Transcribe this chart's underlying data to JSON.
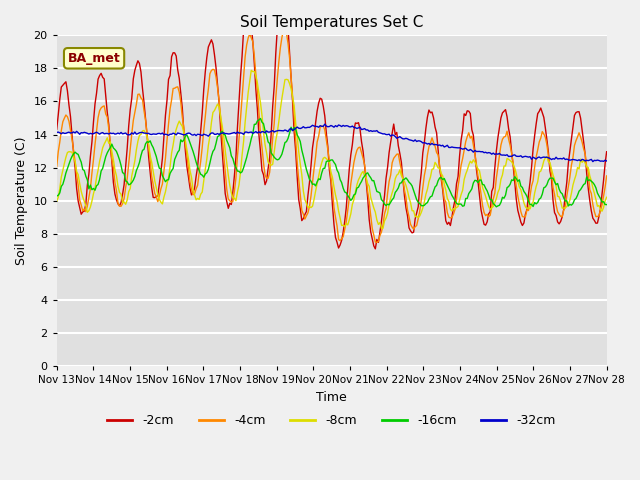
{
  "title": "Soil Temperatures Set C",
  "xlabel": "Time",
  "ylabel": "Soil Temperature (C)",
  "ylim": [
    0,
    20
  ],
  "annotation": "BA_met",
  "legend": [
    "-2cm",
    "-4cm",
    "-8cm",
    "-16cm",
    "-32cm"
  ],
  "colors": {
    "-2cm": "#cc0000",
    "-4cm": "#ff8800",
    "-8cm": "#dddd00",
    "-16cm": "#00cc00",
    "-32cm": "#0000cc"
  },
  "bg_color": "#e0e0e0",
  "grid_color": "#ffffff",
  "x_tick_labels": [
    "Nov 13",
    "Nov 14",
    "Nov 15",
    "Nov 16",
    "Nov 17",
    "Nov 18",
    "Nov 19",
    "Nov 20",
    "Nov 21",
    "Nov 22",
    "Nov 23",
    "Nov 24",
    "Nov 25",
    "Nov 26",
    "Nov 27",
    "Nov 28"
  ],
  "n_days": 15,
  "pts_per_day": 24
}
